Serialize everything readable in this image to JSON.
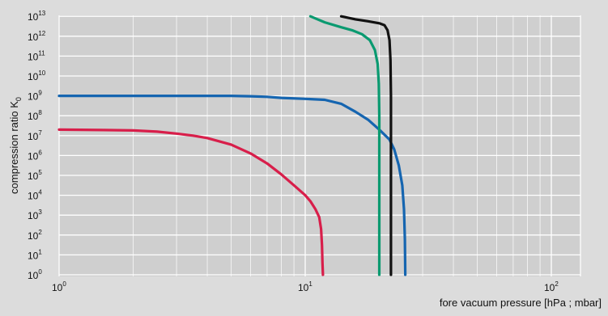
{
  "chart_data": {
    "type": "line",
    "xlabel": "fore vacuum pressure [hPa ; mbar]",
    "ylabel_main": "compression ratio K",
    "ylabel_subscript": "0",
    "x_scale": "log",
    "y_scale": "log",
    "xlim": [
      1,
      120
    ],
    "ylim_exponent": [
      0,
      13
    ],
    "x_ticks": [
      {
        "value": 1,
        "base": "10",
        "exp": "0"
      },
      {
        "value": 10,
        "base": "10",
        "exp": "1"
      },
      {
        "value": 100,
        "base": "10",
        "exp": "2"
      }
    ],
    "y_ticks": [
      {
        "exp_value": 0,
        "base": "10",
        "exp": "0"
      },
      {
        "exp_value": 1,
        "base": "10",
        "exp": "1"
      },
      {
        "exp_value": 2,
        "base": "10",
        "exp": "2"
      },
      {
        "exp_value": 3,
        "base": "10",
        "exp": "3"
      },
      {
        "exp_value": 4,
        "base": "10",
        "exp": "4"
      },
      {
        "exp_value": 5,
        "base": "10",
        "exp": "5"
      },
      {
        "exp_value": 6,
        "base": "10",
        "exp": "6"
      },
      {
        "exp_value": 7,
        "base": "10",
        "exp": "7"
      },
      {
        "exp_value": 8,
        "base": "10",
        "exp": "8"
      },
      {
        "exp_value": 9,
        "base": "10",
        "exp": "9"
      },
      {
        "exp_value": 10,
        "base": "10",
        "exp": "10"
      },
      {
        "exp_value": 11,
        "base": "10",
        "exp": "11"
      },
      {
        "exp_value": 12,
        "base": "10",
        "exp": "12"
      },
      {
        "exp_value": 13,
        "base": "10",
        "exp": "13"
      }
    ],
    "grid": true,
    "series": [
      {
        "color": "#d81e4a",
        "key": "red",
        "points": [
          [
            1,
            7.3
          ],
          [
            1.5,
            7.28
          ],
          [
            2,
            7.26
          ],
          [
            2.5,
            7.2
          ],
          [
            3,
            7.1
          ],
          [
            3.5,
            7.0
          ],
          [
            4,
            6.88
          ],
          [
            5,
            6.55
          ],
          [
            6,
            6.1
          ],
          [
            7,
            5.6
          ],
          [
            8,
            5.05
          ],
          [
            9,
            4.5
          ],
          [
            10,
            4.0
          ],
          [
            10.5,
            3.7
          ],
          [
            11,
            3.3
          ],
          [
            11.4,
            2.9
          ],
          [
            11.6,
            2.3
          ],
          [
            11.7,
            1.5
          ],
          [
            11.75,
            0.6
          ],
          [
            11.8,
            0
          ]
        ]
      },
      {
        "color": "#1565b0",
        "key": "blue",
        "points": [
          [
            1,
            9
          ],
          [
            2,
            9
          ],
          [
            3,
            9
          ],
          [
            4,
            9
          ],
          [
            5,
            9
          ],
          [
            6,
            8.98
          ],
          [
            7,
            8.95
          ],
          [
            8,
            8.9
          ],
          [
            10,
            8.85
          ],
          [
            12,
            8.8
          ],
          [
            14,
            8.6
          ],
          [
            16,
            8.2
          ],
          [
            18,
            7.8
          ],
          [
            20,
            7.3
          ],
          [
            22,
            6.8
          ],
          [
            23,
            6.3
          ],
          [
            24,
            5.5
          ],
          [
            24.8,
            4.5
          ],
          [
            25.2,
            3.3
          ],
          [
            25.4,
            1.8
          ],
          [
            25.5,
            0
          ]
        ]
      },
      {
        "color": "#0a9a70",
        "key": "green",
        "points": [
          [
            10.5,
            13
          ],
          [
            12,
            12.7
          ],
          [
            14,
            12.45
          ],
          [
            15.5,
            12.3
          ],
          [
            17,
            12.1
          ],
          [
            18.3,
            11.8
          ],
          [
            19.2,
            11.3
          ],
          [
            19.7,
            10.6
          ],
          [
            19.9,
            9.6
          ],
          [
            20,
            8
          ],
          [
            20,
            5
          ],
          [
            20,
            2
          ],
          [
            20,
            0
          ]
        ]
      },
      {
        "color": "#111111",
        "key": "black",
        "points": [
          [
            14,
            13
          ],
          [
            16,
            12.85
          ],
          [
            18,
            12.75
          ],
          [
            20,
            12.65
          ],
          [
            21,
            12.55
          ],
          [
            21.6,
            12.3
          ],
          [
            22,
            11.8
          ],
          [
            22.2,
            10.8
          ],
          [
            22.3,
            9
          ],
          [
            22.3,
            6
          ],
          [
            22.3,
            3
          ],
          [
            22.3,
            0
          ]
        ]
      }
    ]
  }
}
